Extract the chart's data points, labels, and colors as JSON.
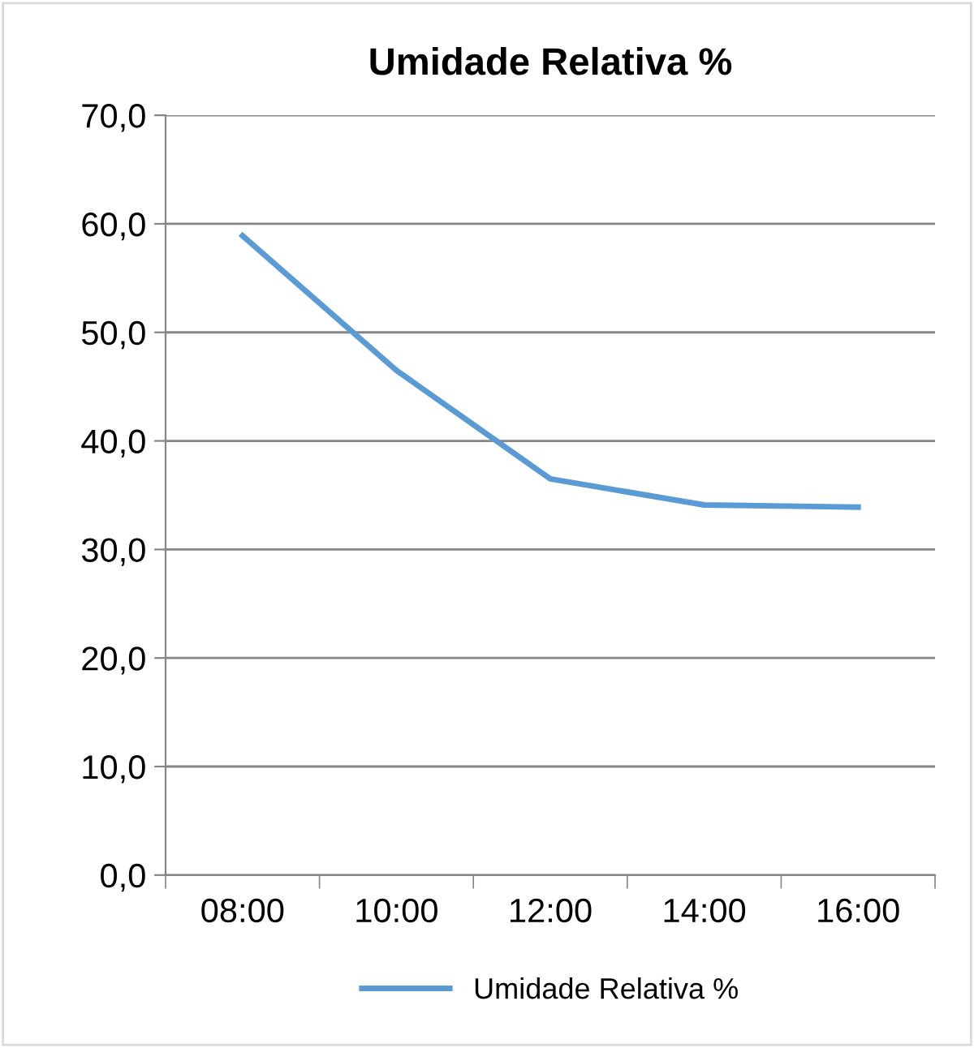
{
  "chart_data": {
    "type": "line",
    "title": "Umidade Relativa %",
    "categories": [
      "08:00",
      "10:00",
      "12:00",
      "14:00",
      "16:00"
    ],
    "series": [
      {
        "name": "Umidade Relativa %",
        "color": "#5b9bd5",
        "values": [
          58.9,
          46.5,
          36.5,
          34.1,
          33.9
        ]
      }
    ],
    "ylim": [
      0,
      70
    ],
    "yticks": [
      {
        "value": 0,
        "label": "0,0"
      },
      {
        "value": 10,
        "label": "10,0"
      },
      {
        "value": 20,
        "label": "20,0"
      },
      {
        "value": 30,
        "label": "30,0"
      },
      {
        "value": 40,
        "label": "40,0"
      },
      {
        "value": 50,
        "label": "50,0"
      },
      {
        "value": 60,
        "label": "60,0"
      },
      {
        "value": 70,
        "label": "70,0"
      }
    ],
    "grid": "y",
    "legend": "bottom",
    "marker": "none",
    "line_style": "solid"
  }
}
